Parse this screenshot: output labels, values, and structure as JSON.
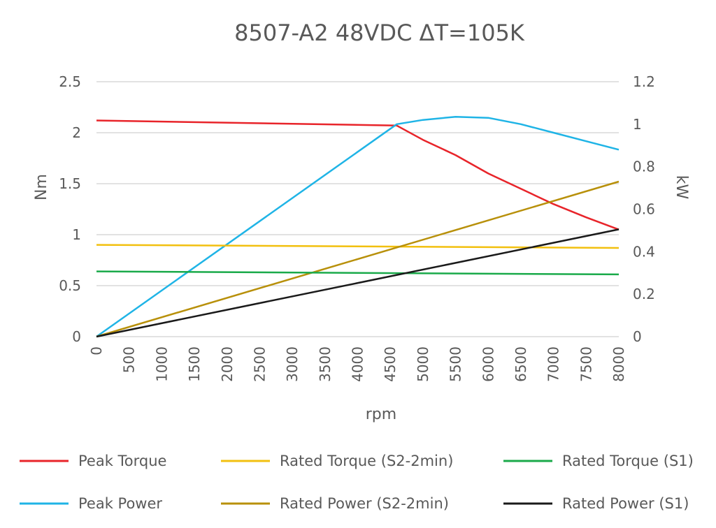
{
  "chart_data": {
    "type": "line",
    "title": "8507-A2 48VDC ΔT=105K",
    "xlabel": "rpm",
    "ylabel_left": "Nm",
    "ylabel_right": "kW",
    "x_ticks": [
      "0",
      "500",
      "1000",
      "1500",
      "2000",
      "2500",
      "3000",
      "3500",
      "4000",
      "4500",
      "5000",
      "5500",
      "6000",
      "6500",
      "7000",
      "7500",
      "8000"
    ],
    "xlim": [
      0,
      8000
    ],
    "ylim_left": [
      0,
      2.5
    ],
    "ylim_right": [
      0,
      1.2
    ],
    "y_left_ticks": [
      "0",
      "0.5",
      "1",
      "1.5",
      "2",
      "2.5"
    ],
    "y_right_ticks": [
      "0",
      "0.2",
      "0.4",
      "0.6",
      "0.8",
      "1",
      "1.2"
    ],
    "grid": "horizontal",
    "legend_position": "bottom",
    "series": [
      {
        "name": "Peak Torque",
        "axis": "left",
        "color": "#e8242a",
        "x": [
          0,
          4600,
          5000,
          5500,
          6000,
          6500,
          7000,
          7500,
          8000
        ],
        "y": [
          2.12,
          2.07,
          1.93,
          1.78,
          1.6,
          1.45,
          1.3,
          1.17,
          1.05
        ]
      },
      {
        "name": "Peak Power",
        "axis": "right",
        "color": "#1fb4e6",
        "x": [
          0,
          4600,
          5000,
          5500,
          6000,
          6500,
          7000,
          7500,
          8000
        ],
        "y": [
          0,
          1.0,
          1.02,
          1.035,
          1.03,
          1.0,
          0.96,
          0.92,
          0.88
        ]
      },
      {
        "name": "Rated Torque (S2-2min)",
        "axis": "left",
        "color": "#f2c00f",
        "x": [
          0,
          8000
        ],
        "y": [
          0.9,
          0.87
        ]
      },
      {
        "name": "Rated Power (S2-2min)",
        "axis": "right",
        "color": "#b8900a",
        "x": [
          0,
          8000
        ],
        "y": [
          0,
          0.73
        ]
      },
      {
        "name": "Rated Torque (S1)",
        "axis": "left",
        "color": "#1aaa4a",
        "x": [
          0,
          8000
        ],
        "y": [
          0.64,
          0.61
        ]
      },
      {
        "name": "Rated Power (S1)",
        "axis": "right",
        "color": "#1a1a1a",
        "x": [
          0,
          8000
        ],
        "y": [
          0,
          0.505
        ]
      }
    ],
    "legend_order": [
      "Peak Torque",
      "Rated Torque (S2-2min)",
      "Rated Torque (S1)",
      "Peak Power",
      "Rated Power (S2-2min)",
      "Rated Power (S1)"
    ]
  }
}
